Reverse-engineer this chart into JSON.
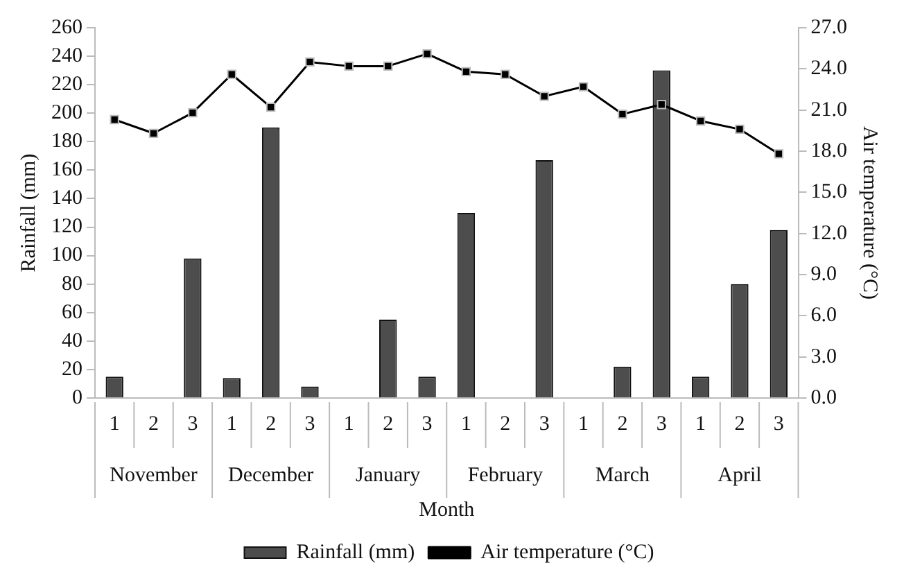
{
  "chart_data": {
    "type": "bar",
    "xlabel": "Month",
    "ylabel": "Rainfall (mm)",
    "y2label": "Air temperature (°C)",
    "categories": [
      "1",
      "2",
      "3",
      "1",
      "2",
      "3",
      "1",
      "2",
      "3",
      "1",
      "2",
      "3",
      "1",
      "2",
      "3",
      "1",
      "2",
      "3"
    ],
    "annotations": [
      "November",
      "December",
      "January",
      "February",
      "March",
      "April"
    ],
    "series": [
      {
        "name": "Rainfall (mm)",
        "type": "bar",
        "color": "#4d4d4d",
        "values": [
          15,
          0,
          98,
          14,
          190,
          8,
          0,
          55,
          15,
          130,
          0,
          167,
          0,
          22,
          230,
          15,
          80,
          118
        ]
      },
      {
        "name": "Air temperature (°C)",
        "type": "line",
        "axis": "y2",
        "color": "#000000",
        "values": [
          20.3,
          19.3,
          20.8,
          23.6,
          21.2,
          24.5,
          24.2,
          24.2,
          25.1,
          23.8,
          23.6,
          22.0,
          22.7,
          20.7,
          21.4,
          20.2,
          19.6,
          17.8
        ]
      }
    ],
    "ylim": [
      0,
      260
    ],
    "yticks": [
      0,
      20,
      40,
      60,
      80,
      100,
      120,
      140,
      160,
      180,
      200,
      220,
      240,
      260
    ],
    "y2lim": [
      0,
      27
    ],
    "y2ticks": [
      {
        "value": 0,
        "label": "0.0"
      },
      {
        "value": 3,
        "label": "3.0"
      },
      {
        "value": 6,
        "label": "6.0"
      },
      {
        "value": 9,
        "label": "9.0"
      },
      {
        "value": 12,
        "label": "12.0"
      },
      {
        "value": 15,
        "label": "15.0"
      },
      {
        "value": 18,
        "label": "18.0"
      },
      {
        "value": 21,
        "label": "21.0"
      },
      {
        "value": 24,
        "label": "24.0"
      },
      {
        "value": 27,
        "label": "27.0"
      }
    ],
    "marker": "square",
    "line_style": "solid",
    "legend": "bottom"
  }
}
